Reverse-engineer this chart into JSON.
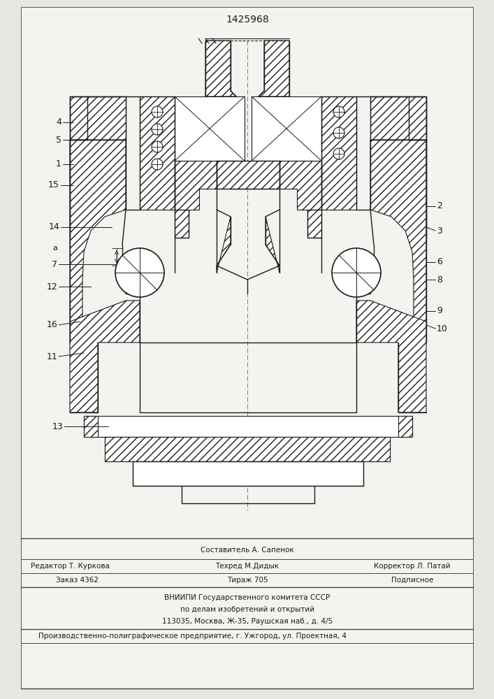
{
  "title": "1425968",
  "bg_color": "#e8e6e0",
  "paper_color": "#f5f3ef",
  "line_color": "#1a1a1a",
  "footer": {
    "line1": "Составитель А. Сапенок",
    "line2_left": "Редактор Т. Куркова",
    "line2_mid": "Техред М.Дидык",
    "line2_right": "Корректор Л. Патай",
    "line3_left": "Заказ 4362",
    "line3_mid": "Тираж 705",
    "line3_right": "Подписное",
    "line4": "ВНИИПИ Государственного комитета СССР",
    "line5": "по делам изобретений и открытий",
    "line6": "113035, Москва, Ж-35, Раушская наб., д. 4/5",
    "line7": "Производственно-полиграфическое предприятие, г. Ужгород, ул. Проектная, 4"
  }
}
